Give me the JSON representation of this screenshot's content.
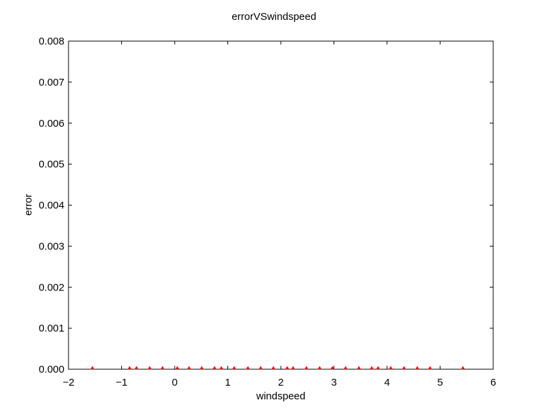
{
  "chart_data": {
    "type": "scatter",
    "title": "errorVSwindspeed",
    "xlabel": "windspeed",
    "ylabel": "error",
    "xlim": [
      -2,
      6
    ],
    "ylim": [
      0,
      0.008
    ],
    "x_ticks": [
      -2,
      -1,
      0,
      1,
      2,
      3,
      4,
      5,
      6
    ],
    "x_tick_labels": [
      "−2",
      "−1",
      "0",
      "1",
      "2",
      "3",
      "4",
      "5",
      "6"
    ],
    "y_ticks": [
      0,
      0.001,
      0.002,
      0.003,
      0.004,
      0.005,
      0.006,
      0.007,
      0.008
    ],
    "y_tick_labels": [
      "0.000",
      "0.001",
      "0.002",
      "0.003",
      "0.004",
      "0.005",
      "0.006",
      "0.007",
      "0.008"
    ],
    "grid": false,
    "marker_color": "#ff0000",
    "series": [
      {
        "x": [
          -1.55,
          -0.85,
          -0.72,
          -0.47,
          -0.23,
          0.05,
          0.27,
          0.51,
          0.75,
          0.88,
          1.12,
          1.38,
          1.62,
          1.86,
          2.12,
          2.23,
          2.48,
          2.73,
          2.97,
          3.22,
          3.47,
          3.71,
          3.83,
          4.07,
          4.32,
          4.57,
          4.81,
          5.43
        ],
        "y": [
          0,
          0,
          0,
          0,
          0,
          0,
          0,
          0,
          0,
          0,
          0,
          0,
          0,
          0,
          0,
          0,
          0,
          0,
          0,
          0,
          0,
          0,
          0,
          0,
          0,
          0,
          0,
          0
        ]
      }
    ]
  }
}
